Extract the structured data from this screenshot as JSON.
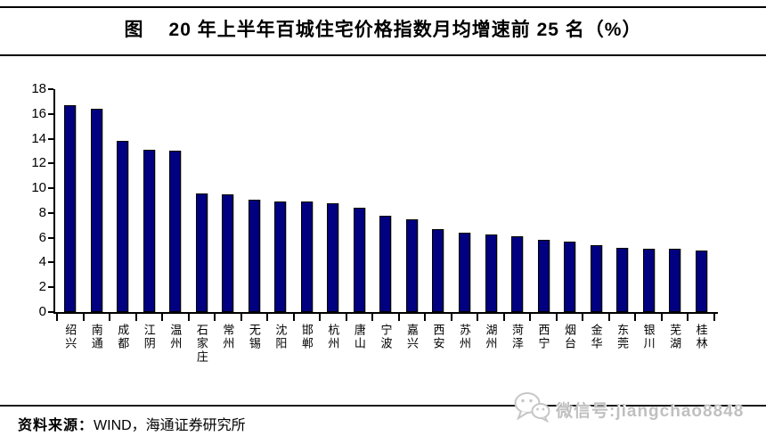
{
  "header": {
    "tag": "图",
    "title": "20 年上半年百城住宅价格指数月均增速前 25 名（%）"
  },
  "chart_data": {
    "type": "bar",
    "title": "20 年上半年百城住宅价格指数月均增速前 25 名（%）",
    "categories": [
      "绍兴",
      "南通",
      "成都",
      "江阴",
      "温州",
      "石家庄",
      "常州",
      "无锡",
      "沈阳",
      "邯郸",
      "杭州",
      "唐山",
      "宁波",
      "嘉兴",
      "西安",
      "苏州",
      "湖州",
      "菏泽",
      "西宁",
      "烟台",
      "金华",
      "东莞",
      "银川",
      "芜湖",
      "桂林"
    ],
    "values": [
      16.7,
      16.4,
      13.8,
      13.1,
      13.0,
      9.6,
      9.5,
      9.1,
      8.9,
      8.9,
      8.8,
      8.4,
      7.8,
      7.5,
      6.7,
      6.4,
      6.3,
      6.1,
      5.8,
      5.7,
      5.4,
      5.2,
      5.1,
      5.1,
      5.0
    ],
    "xlabel": "",
    "ylabel": "",
    "ylim": [
      0,
      18
    ],
    "yticks": [
      0,
      2,
      4,
      6,
      8,
      10,
      12,
      14,
      16,
      18
    ],
    "grid": false,
    "legend_position": "none",
    "bar_color": "#000080"
  },
  "footer": {
    "source_label": "资料来源：",
    "source_text": "WIND，海通证券研究所"
  },
  "watermark": {
    "icon": "wechat-icon",
    "text": "微信号:jiangchao8848",
    "color": "#c0c0c0"
  }
}
